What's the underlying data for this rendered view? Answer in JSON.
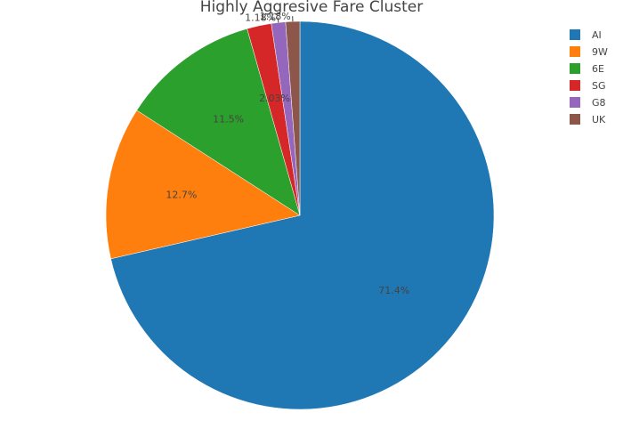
{
  "chart_data": {
    "type": "pie",
    "title": "Highly Aggresive Fare Cluster",
    "labels": [
      "AI",
      "9W",
      "6E",
      "SG",
      "G8",
      "UK"
    ],
    "values": [
      71.4,
      12.7,
      11.5,
      2.03,
      1.18,
      1.18
    ],
    "value_labels": [
      "71.4%",
      "12.7%",
      "11.5%",
      "2.03%",
      "1.18%",
      "1.18%"
    ],
    "colors": [
      "#1f77b4",
      "#ff7f0e",
      "#2ca02c",
      "#d62728",
      "#9467bd",
      "#8c564b"
    ],
    "direction": "clockwise",
    "legend_placement": "top-right"
  }
}
